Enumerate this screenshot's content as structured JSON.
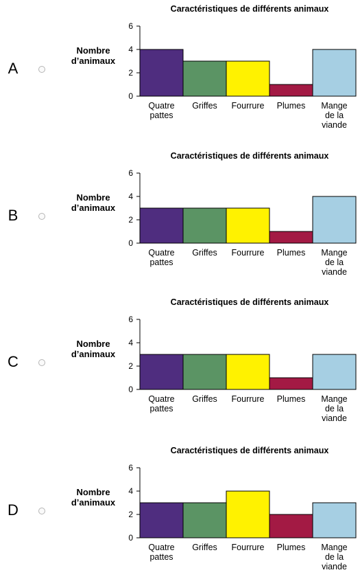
{
  "options": [
    {
      "letter": "A"
    },
    {
      "letter": "B"
    },
    {
      "letter": "C"
    },
    {
      "letter": "D"
    }
  ],
  "chart_data": [
    {
      "type": "bar",
      "title": "Caractéristiques de différents animaux",
      "ylabel": [
        "Nombre",
        "d’animaux"
      ],
      "ylim": [
        0,
        6
      ],
      "yticks": [
        0,
        2,
        4,
        6
      ],
      "categories": [
        [
          "Quatre",
          "pattes"
        ],
        [
          "Griffes"
        ],
        [
          "Fourrure"
        ],
        [
          "Plumes"
        ],
        [
          "Mange",
          "de la",
          "viande"
        ]
      ],
      "values": [
        4,
        3,
        3,
        1,
        4
      ],
      "colors": [
        "#4f2d7f",
        "#5b9464",
        "#fff200",
        "#a31a44",
        "#a6cfe3"
      ]
    },
    {
      "type": "bar",
      "title": "Caractéristiques de différents animaux",
      "ylabel": [
        "Nombre",
        "d’animaux"
      ],
      "ylim": [
        0,
        6
      ],
      "yticks": [
        0,
        2,
        4,
        6
      ],
      "categories": [
        [
          "Quatre",
          "pattes"
        ],
        [
          "Griffes"
        ],
        [
          "Fourrure"
        ],
        [
          "Plumes"
        ],
        [
          "Mange",
          "de la",
          "viande"
        ]
      ],
      "values": [
        3,
        3,
        3,
        1,
        4
      ],
      "colors": [
        "#4f2d7f",
        "#5b9464",
        "#fff200",
        "#a31a44",
        "#a6cfe3"
      ]
    },
    {
      "type": "bar",
      "title": "Caractéristiques de différents animaux",
      "ylabel": [
        "Nombre",
        "d’animaux"
      ],
      "ylim": [
        0,
        6
      ],
      "yticks": [
        0,
        2,
        4,
        6
      ],
      "categories": [
        [
          "Quatre",
          "pattes"
        ],
        [
          "Griffes"
        ],
        [
          "Fourrure"
        ],
        [
          "Plumes"
        ],
        [
          "Mange",
          "de la",
          "viande"
        ]
      ],
      "values": [
        3,
        3,
        3,
        1,
        3
      ],
      "colors": [
        "#4f2d7f",
        "#5b9464",
        "#fff200",
        "#a31a44",
        "#a6cfe3"
      ]
    },
    {
      "type": "bar",
      "title": "Caractéristiques de différents animaux",
      "ylabel": [
        "Nombre",
        "d’animaux"
      ],
      "ylim": [
        0,
        6
      ],
      "yticks": [
        0,
        2,
        4,
        6
      ],
      "categories": [
        [
          "Quatre",
          "pattes"
        ],
        [
          "Griffes"
        ],
        [
          "Fourrure"
        ],
        [
          "Plumes"
        ],
        [
          "Mange",
          "de la",
          "viande"
        ]
      ],
      "values": [
        3,
        3,
        4,
        2,
        3
      ],
      "colors": [
        "#4f2d7f",
        "#5b9464",
        "#fff200",
        "#a31a44",
        "#a6cfe3"
      ]
    }
  ]
}
